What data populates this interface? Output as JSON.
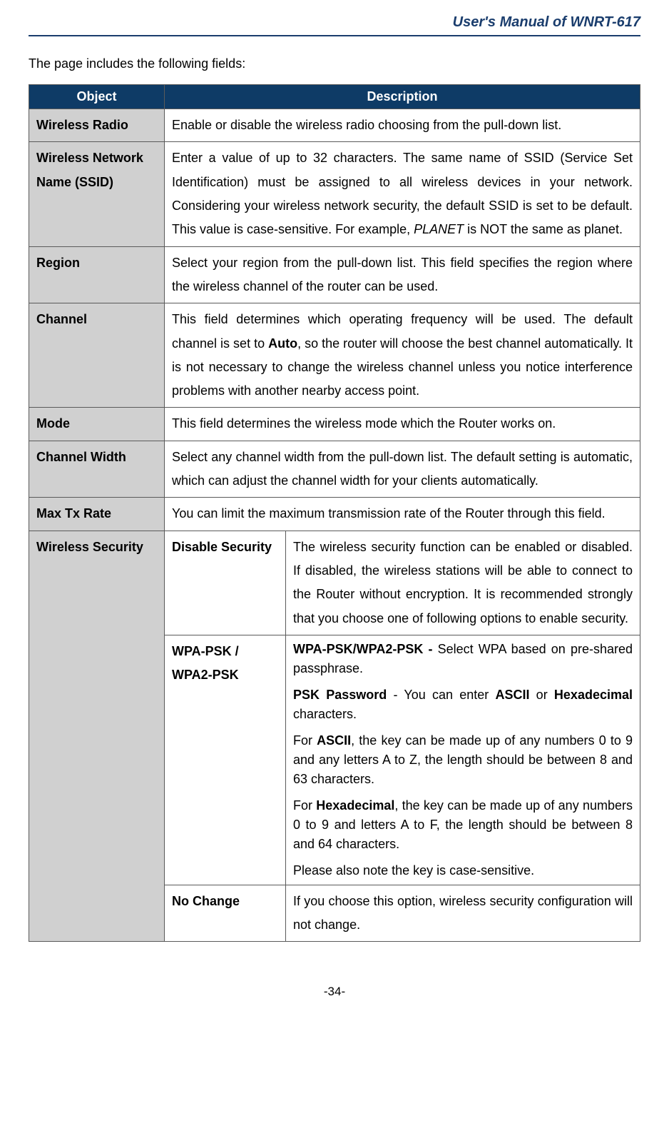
{
  "header": {
    "title": "User's Manual of WNRT-617"
  },
  "intro": "The page includes the following fields:",
  "table": {
    "headers": {
      "object": "Object",
      "description": "Description"
    },
    "rows": {
      "wireless_radio": {
        "label": "Wireless Radio",
        "desc": "Enable or disable the wireless radio choosing from the pull-down list."
      },
      "ssid": {
        "label": "Wireless Network Name (SSID)",
        "desc_pre": "Enter a value of up to 32 characters. The same name of SSID (Service Set Identification) must be assigned to all wireless devices in your network. Considering your wireless network security, the default SSID is set to be default. This value is case-sensitive. For example, ",
        "desc_ital": "PLANET",
        "desc_post": " is NOT the same as planet."
      },
      "region": {
        "label": "Region",
        "desc": "Select your region from the pull-down list. This field specifies the region where the wireless channel of the router can be used."
      },
      "channel": {
        "label": "Channel",
        "desc_pre": "This field determines which operating frequency will be used. The default channel is set to ",
        "desc_bold": "Auto",
        "desc_post": ", so the router will choose the best channel automatically. It is not necessary to change the wireless channel unless you notice interference problems with another nearby access point."
      },
      "mode": {
        "label": "Mode",
        "desc": "This field determines the wireless mode which the Router works on."
      },
      "channel_width": {
        "label": "Channel Width",
        "desc": "Select any channel width from the pull-down list. The default setting is automatic, which can adjust the channel width for your clients automatically."
      },
      "max_tx": {
        "label": "Max Tx Rate",
        "desc": "You can limit the maximum transmission rate of the Router through this field."
      },
      "security": {
        "label": "Wireless Security",
        "disable": {
          "label": "Disable Security",
          "desc": "The wireless security function can be enabled or disabled. If disabled, the wireless stations will be able to connect to the Router without encryption. It is recommended strongly that you choose one of following options to enable security."
        },
        "wpa": {
          "label": "WPA-PSK / WPA2-PSK",
          "p1_b": "WPA-PSK/WPA2-PSK - ",
          "p1_t": "Select WPA based on pre-shared passphrase.",
          "p2_b1": "PSK Password",
          "p2_t1": " - You can enter ",
          "p2_b2": "ASCII",
          "p2_t2": " or ",
          "p2_b3": "Hexadecimal",
          "p2_t3": " characters.",
          "p3_t1": "For ",
          "p3_b1": "ASCII",
          "p3_t2": ", the key can be made up of any numbers 0 to 9 and any letters A to Z, the length should be between 8 and 63 characters.",
          "p4_t1": "For ",
          "p4_b1": "Hexadecimal",
          "p4_t2": ", the key can be made up of any numbers 0 to 9 and letters A to F, the length should be between 8 and 64 characters.",
          "p5": "Please also note the key is case-sensitive."
        },
        "no_change": {
          "label": "No Change",
          "desc": "If you choose this option, wireless security configuration will not change."
        }
      }
    }
  },
  "page_number": "-34-",
  "colors": {
    "header_blue": "#1a3d6d",
    "th_bg": "#0e3b66",
    "obj_bg": "#d0d0d0",
    "border": "#5a5a5a"
  }
}
